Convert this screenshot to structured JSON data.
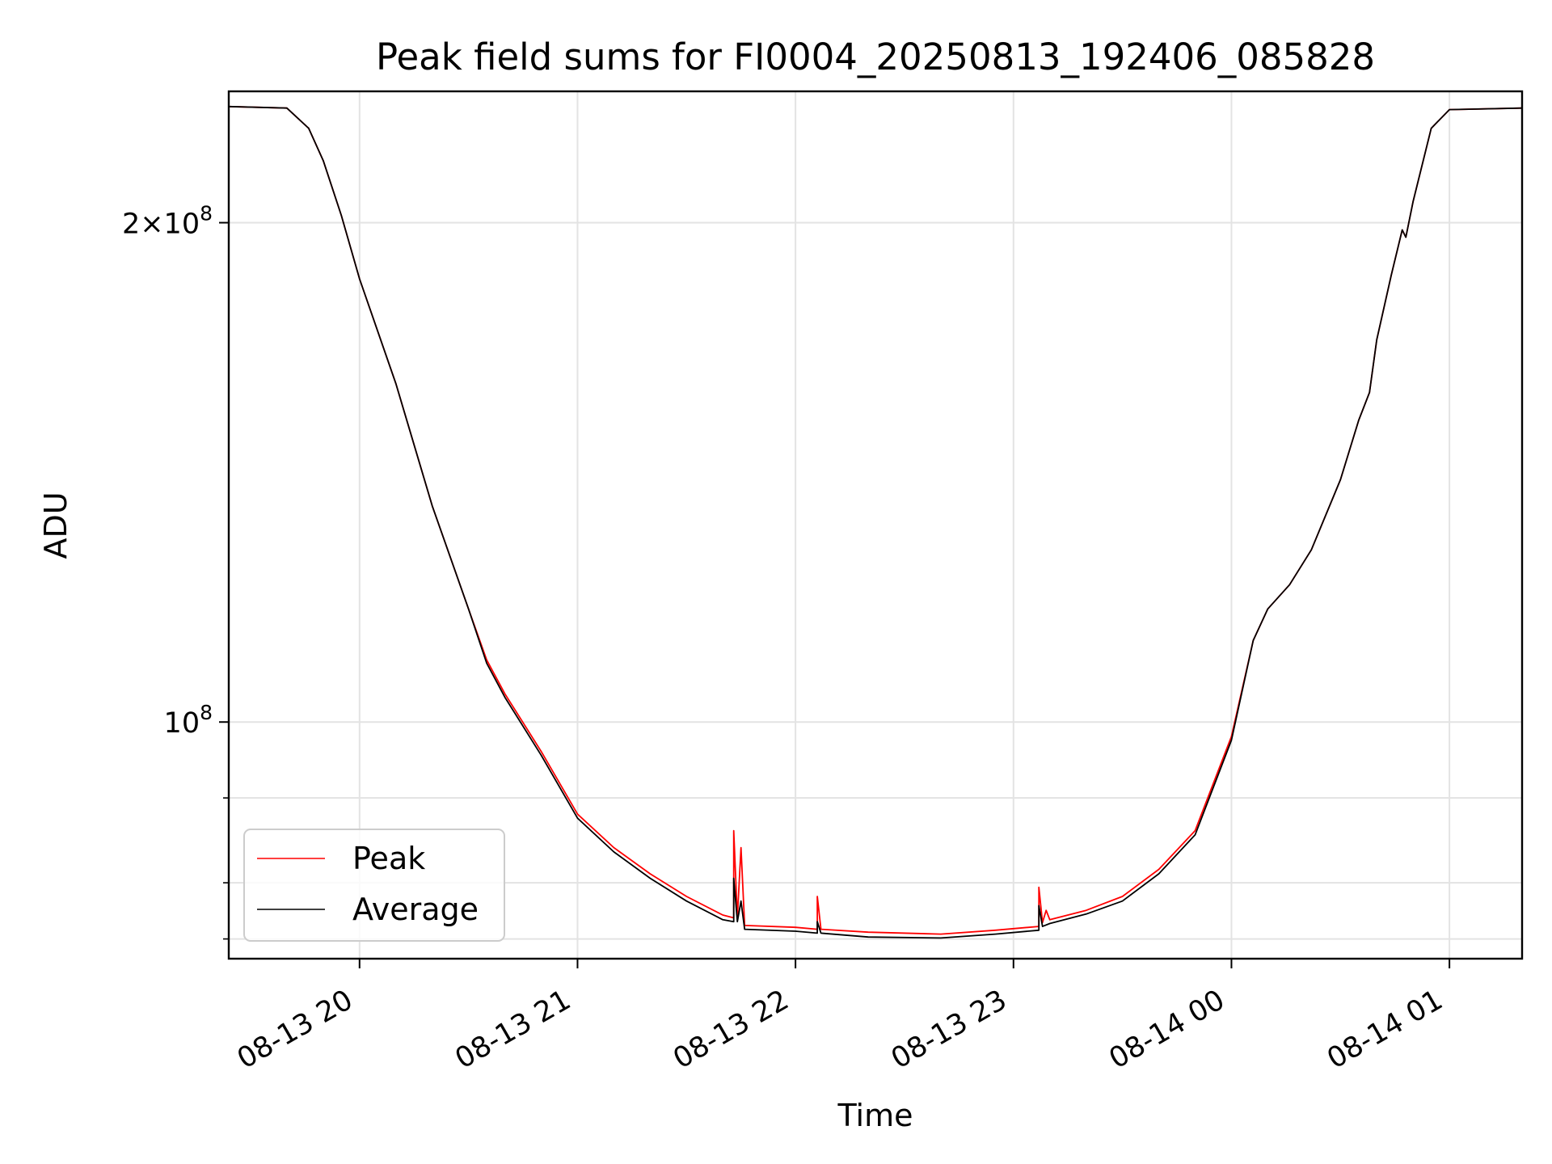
{
  "chart_data": {
    "type": "line",
    "title": "Peak field sums for FI0004_20250813_192406_085828",
    "xlabel": "Time",
    "ylabel": "ADU",
    "y_scale": "log",
    "grid": true,
    "legend_position": "lower-left",
    "x_range": [
      "2025-08-13 19:24",
      "2025-08-14 01:20"
    ],
    "y_range": [
      72000000,
      240000000
    ],
    "x_ticks": [
      {
        "t": "2025-08-13 20:00",
        "label": "08-13 20"
      },
      {
        "t": "2025-08-13 21:00",
        "label": "08-13 21"
      },
      {
        "t": "2025-08-13 22:00",
        "label": "08-13 22"
      },
      {
        "t": "2025-08-13 23:00",
        "label": "08-13 23"
      },
      {
        "t": "2025-08-14 00:00",
        "label": "08-14 00"
      },
      {
        "t": "2025-08-14 01:00",
        "label": "08-14 01"
      }
    ],
    "y_major_ticks": [
      {
        "v": 100000000,
        "base": "10",
        "exp": "8",
        "coef": ""
      },
      {
        "v": 200000000,
        "base": "10",
        "exp": "8",
        "coef": "2×"
      }
    ],
    "y_minor_ticks": [
      74000000,
      80000000,
      90000000
    ],
    "series": [
      {
        "name": "Peak",
        "color": "#ff0000",
        "points": [
          [
            "2025-08-13 19:24",
            235000000
          ],
          [
            "2025-08-13 19:40",
            234500000
          ],
          [
            "2025-08-13 19:46",
            228000000
          ],
          [
            "2025-08-13 19:50",
            218000000
          ],
          [
            "2025-08-13 19:55",
            202000000
          ],
          [
            "2025-08-13 20:00",
            185000000
          ],
          [
            "2025-08-13 20:10",
            160000000
          ],
          [
            "2025-08-13 20:20",
            135000000
          ],
          [
            "2025-08-13 20:30",
            117000000
          ],
          [
            "2025-08-13 20:35",
            109000000
          ],
          [
            "2025-08-13 20:40",
            104000000
          ],
          [
            "2025-08-13 20:50",
            96000000
          ],
          [
            "2025-08-13 21:00",
            88000000
          ],
          [
            "2025-08-13 21:10",
            84000000
          ],
          [
            "2025-08-13 21:20",
            81000000
          ],
          [
            "2025-08-13 21:30",
            78500000
          ],
          [
            "2025-08-13 21:40",
            76500000
          ],
          [
            "2025-08-13 21:43",
            76200000
          ],
          [
            "2025-08-13 21:43",
            86000000
          ],
          [
            "2025-08-13 21:44",
            76200000
          ],
          [
            "2025-08-13 21:45",
            84000000
          ],
          [
            "2025-08-13 21:46",
            75400000
          ],
          [
            "2025-08-13 22:00",
            75200000
          ],
          [
            "2025-08-13 22:06",
            75000000
          ],
          [
            "2025-08-13 22:06",
            78500000
          ],
          [
            "2025-08-13 22:07",
            75000000
          ],
          [
            "2025-08-13 22:20",
            74700000
          ],
          [
            "2025-08-13 22:40",
            74500000
          ],
          [
            "2025-08-13 22:55",
            74900000
          ],
          [
            "2025-08-13 23:07",
            75300000
          ],
          [
            "2025-08-13 23:07",
            79500000
          ],
          [
            "2025-08-13 23:08",
            75700000
          ],
          [
            "2025-08-13 23:09",
            77000000
          ],
          [
            "2025-08-13 23:10",
            76000000
          ],
          [
            "2025-08-13 23:20",
            77000000
          ],
          [
            "2025-08-13 23:30",
            78500000
          ],
          [
            "2025-08-13 23:40",
            81500000
          ],
          [
            "2025-08-13 23:50",
            86000000
          ],
          [
            "2025-08-14 00:00",
            98000000
          ],
          [
            "2025-08-14 00:06",
            112000000
          ],
          [
            "2025-08-14 00:10",
            117000000
          ],
          [
            "2025-08-14 00:16",
            121000000
          ],
          [
            "2025-08-14 00:22",
            127000000
          ],
          [
            "2025-08-14 00:30",
            140000000
          ],
          [
            "2025-08-14 00:35",
            152000000
          ],
          [
            "2025-08-14 00:38",
            158000000
          ],
          [
            "2025-08-14 00:40",
            170000000
          ],
          [
            "2025-08-14 00:44",
            186000000
          ],
          [
            "2025-08-14 00:47",
            198000000
          ],
          [
            "2025-08-14 00:48",
            196000000
          ],
          [
            "2025-08-14 00:50",
            206000000
          ],
          [
            "2025-08-14 00:55",
            228000000
          ],
          [
            "2025-08-14 01:00",
            234000000
          ],
          [
            "2025-08-14 01:20",
            234500000
          ]
        ]
      },
      {
        "name": "Average",
        "color": "#000000",
        "points": [
          [
            "2025-08-13 19:24",
            235000000
          ],
          [
            "2025-08-13 19:40",
            234500000
          ],
          [
            "2025-08-13 19:46",
            228000000
          ],
          [
            "2025-08-13 19:50",
            218000000
          ],
          [
            "2025-08-13 19:55",
            202000000
          ],
          [
            "2025-08-13 20:00",
            185000000
          ],
          [
            "2025-08-13 20:10",
            160000000
          ],
          [
            "2025-08-13 20:20",
            135000000
          ],
          [
            "2025-08-13 20:30",
            117000000
          ],
          [
            "2025-08-13 20:35",
            108500000
          ],
          [
            "2025-08-13 20:40",
            103500000
          ],
          [
            "2025-08-13 20:50",
            95500000
          ],
          [
            "2025-08-13 21:00",
            87500000
          ],
          [
            "2025-08-13 21:10",
            83500000
          ],
          [
            "2025-08-13 21:20",
            80500000
          ],
          [
            "2025-08-13 21:30",
            78000000
          ],
          [
            "2025-08-13 21:40",
            76000000
          ],
          [
            "2025-08-13 21:43",
            75800000
          ],
          [
            "2025-08-13 21:43",
            80500000
          ],
          [
            "2025-08-13 21:44",
            75800000
          ],
          [
            "2025-08-13 21:45",
            78000000
          ],
          [
            "2025-08-13 21:46",
            75000000
          ],
          [
            "2025-08-13 22:00",
            74800000
          ],
          [
            "2025-08-13 22:06",
            74600000
          ],
          [
            "2025-08-13 22:06",
            75800000
          ],
          [
            "2025-08-13 22:07",
            74600000
          ],
          [
            "2025-08-13 22:20",
            74200000
          ],
          [
            "2025-08-13 22:40",
            74100000
          ],
          [
            "2025-08-13 22:55",
            74500000
          ],
          [
            "2025-08-13 23:07",
            74900000
          ],
          [
            "2025-08-13 23:07",
            77500000
          ],
          [
            "2025-08-13 23:08",
            75300000
          ],
          [
            "2025-08-13 23:10",
            75600000
          ],
          [
            "2025-08-13 23:20",
            76600000
          ],
          [
            "2025-08-13 23:30",
            78000000
          ],
          [
            "2025-08-13 23:40",
            81000000
          ],
          [
            "2025-08-13 23:50",
            85500000
          ],
          [
            "2025-08-14 00:00",
            97500000
          ],
          [
            "2025-08-14 00:06",
            112000000
          ],
          [
            "2025-08-14 00:10",
            117000000
          ],
          [
            "2025-08-14 00:16",
            121000000
          ],
          [
            "2025-08-14 00:22",
            127000000
          ],
          [
            "2025-08-14 00:30",
            140000000
          ],
          [
            "2025-08-14 00:35",
            152000000
          ],
          [
            "2025-08-14 00:38",
            158000000
          ],
          [
            "2025-08-14 00:40",
            170000000
          ],
          [
            "2025-08-14 00:44",
            186000000
          ],
          [
            "2025-08-14 00:47",
            198000000
          ],
          [
            "2025-08-14 00:48",
            196000000
          ],
          [
            "2025-08-14 00:50",
            206000000
          ],
          [
            "2025-08-14 00:55",
            228000000
          ],
          [
            "2025-08-14 01:00",
            234000000
          ],
          [
            "2025-08-14 01:20",
            234500000
          ]
        ]
      }
    ]
  }
}
